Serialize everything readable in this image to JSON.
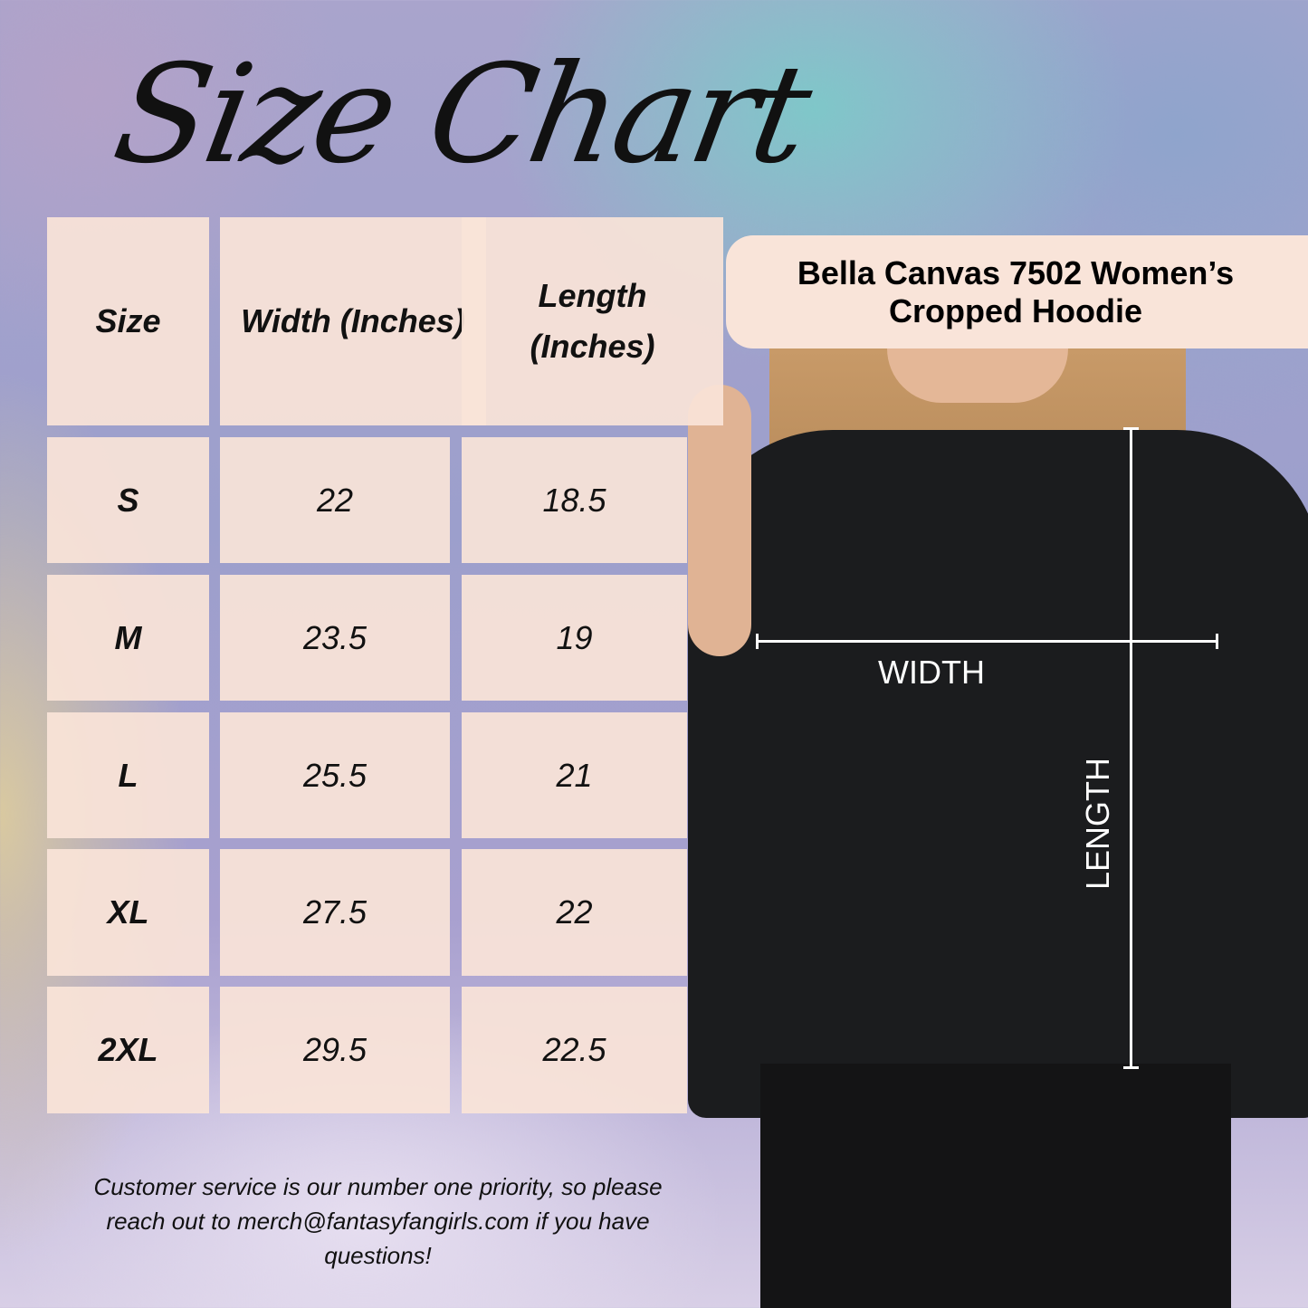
{
  "title": "Size Chart",
  "product": {
    "name": "Bella Canvas 7502 Women’s Cropped Hoodie"
  },
  "table": {
    "headers": [
      "Size",
      "Width (Inches)",
      "Length (Inches)"
    ],
    "rows": [
      {
        "size": "S",
        "width": "22",
        "length": "18.5"
      },
      {
        "size": "M",
        "width": "23.5",
        "length": "19"
      },
      {
        "size": "L",
        "width": "25.5",
        "length": "21"
      },
      {
        "size": "XL",
        "width": "27.5",
        "length": "22"
      },
      {
        "size": "2XL",
        "width": "29.5",
        "length": "22.5"
      }
    ]
  },
  "measurements": {
    "width_label": "WIDTH",
    "length_label": "LENGTH"
  },
  "footer": "Customer service is our number one priority, so please reach out to merch@fantasyfangirls.com if you have questions!",
  "colors": {
    "cell": "#f9e4d9",
    "text": "#111111",
    "hoodie": "#1b1c1e"
  }
}
